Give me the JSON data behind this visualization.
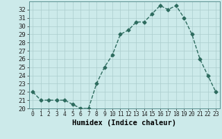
{
  "x": [
    0,
    1,
    2,
    3,
    4,
    5,
    6,
    7,
    8,
    9,
    10,
    11,
    12,
    13,
    14,
    15,
    16,
    17,
    18,
    19,
    20,
    21,
    22,
    23
  ],
  "y": [
    22,
    21,
    21,
    21,
    21,
    20.5,
    20,
    20,
    23,
    25,
    26.5,
    29,
    29.5,
    30.5,
    30.5,
    31.5,
    32.5,
    32,
    32.5,
    31,
    29,
    26,
    24,
    22
  ],
  "line_color": "#2d6b5e",
  "marker": "D",
  "marker_size": 2.5,
  "line_width": 1.0,
  "bg_color": "#cceaea",
  "grid_color": "#aacccc",
  "xlabel": "Humidex (Indice chaleur)",
  "ylim": [
    20,
    33
  ],
  "xlim": [
    -0.5,
    23.5
  ],
  "yticks": [
    20,
    21,
    22,
    23,
    24,
    25,
    26,
    27,
    28,
    29,
    30,
    31,
    32
  ],
  "xticks": [
    0,
    1,
    2,
    3,
    4,
    5,
    6,
    7,
    8,
    9,
    10,
    11,
    12,
    13,
    14,
    15,
    16,
    17,
    18,
    19,
    20,
    21,
    22,
    23
  ],
  "ytick_label_size": 6.5,
  "xtick_label_size": 5.8,
  "xlabel_size": 7.5,
  "xlabel_bold": true
}
